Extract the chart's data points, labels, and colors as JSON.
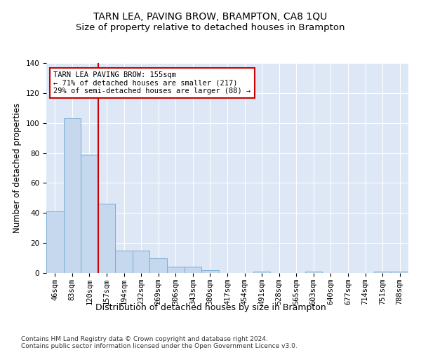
{
  "title": "TARN LEA, PAVING BROW, BRAMPTON, CA8 1QU",
  "subtitle": "Size of property relative to detached houses in Brampton",
  "xlabel": "Distribution of detached houses by size in Brampton",
  "ylabel": "Number of detached properties",
  "categories": [
    "46sqm",
    "83sqm",
    "120sqm",
    "157sqm",
    "194sqm",
    "232sqm",
    "269sqm",
    "306sqm",
    "343sqm",
    "380sqm",
    "417sqm",
    "454sqm",
    "491sqm",
    "528sqm",
    "565sqm",
    "603sqm",
    "640sqm",
    "677sqm",
    "714sqm",
    "751sqm",
    "788sqm"
  ],
  "values": [
    41,
    103,
    79,
    46,
    15,
    15,
    10,
    4,
    4,
    2,
    0,
    0,
    1,
    0,
    0,
    1,
    0,
    0,
    0,
    1,
    1
  ],
  "bar_color": "#c5d8ee",
  "bar_edge_color": "#7aadd4",
  "vline_x": 2.5,
  "vline_color": "#cc0000",
  "annotation_text": "TARN LEA PAVING BROW: 155sqm\n← 71% of detached houses are smaller (217)\n29% of semi-detached houses are larger (88) →",
  "annotation_box_color": "#ffffff",
  "annotation_box_edge": "#cc0000",
  "ylim": [
    0,
    140
  ],
  "yticks": [
    0,
    20,
    40,
    60,
    80,
    100,
    120,
    140
  ],
  "background_color": "#dde7f5",
  "footer": "Contains HM Land Registry data © Crown copyright and database right 2024.\nContains public sector information licensed under the Open Government Licence v3.0.",
  "title_fontsize": 10,
  "subtitle_fontsize": 9.5,
  "xlabel_fontsize": 9,
  "ylabel_fontsize": 8.5,
  "tick_fontsize": 7.5,
  "annot_fontsize": 7.5,
  "footer_fontsize": 6.5
}
